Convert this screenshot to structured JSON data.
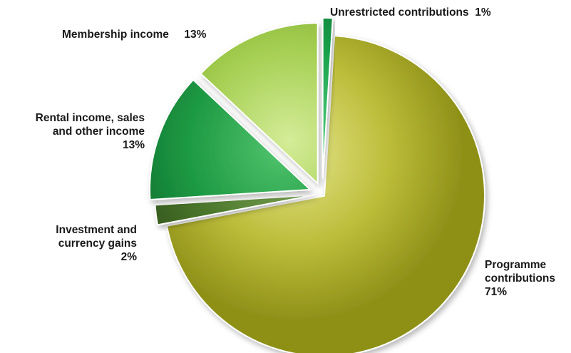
{
  "chart_data": {
    "type": "pie",
    "slices": [
      {
        "key": "programme",
        "name_lines": [
          "Programme",
          "contributions"
        ],
        "pct_label": "71%",
        "value": 71,
        "color": "#bcbd3a",
        "color_light": "#e4e58c",
        "color_dark": "#8e9018"
      },
      {
        "key": "investment",
        "name_lines": [
          "Investment and",
          "currency gains"
        ],
        "pct_label": "2%",
        "value": 2,
        "color": "#4e7a2e",
        "color_light": "#86ad5c",
        "color_dark": "#2f5218"
      },
      {
        "key": "rental",
        "name_lines": [
          "Rental income, sales",
          "and other income"
        ],
        "pct_label": "13%",
        "value": 13,
        "color": "#1e9a44",
        "color_light": "#52c46e",
        "color_dark": "#0f6e2c"
      },
      {
        "key": "membership",
        "name_lines": [
          "Membership income"
        ],
        "pct_label": "13%",
        "value": 13,
        "color": "#a5cf52",
        "color_light": "#d4ec98",
        "color_dark": "#7cab2c"
      },
      {
        "key": "unrestricted",
        "name_lines": [
          "Unrestricted contributions"
        ],
        "pct_label": "1%",
        "value": 1,
        "color": "#16a04a",
        "color_light": "#56d07e",
        "color_dark": "#0a7030"
      }
    ]
  }
}
